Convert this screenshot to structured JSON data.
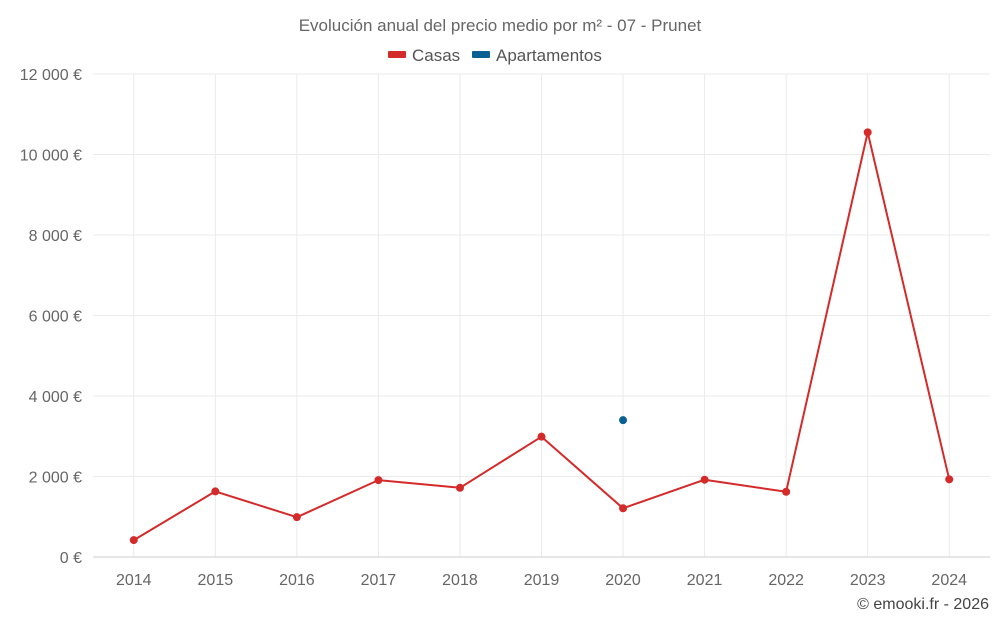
{
  "chart_data": {
    "type": "line",
    "title": "Evolución anual del precio medio por m² - 07 - Prunet",
    "categories": [
      "2014",
      "2015",
      "2016",
      "2017",
      "2018",
      "2019",
      "2020",
      "2021",
      "2022",
      "2023",
      "2024"
    ],
    "series": [
      {
        "name": "Casas",
        "color": "#d42a2a",
        "values": [
          420,
          1630,
          990,
          1910,
          1720,
          2990,
          1210,
          1920,
          1620,
          10550,
          1930
        ]
      },
      {
        "name": "Apartamentos",
        "color": "#0a5f93",
        "values": [
          null,
          null,
          null,
          null,
          null,
          null,
          3400,
          null,
          null,
          null,
          null
        ]
      }
    ],
    "ylim": [
      0,
      12000
    ],
    "yticks": [
      0,
      2000,
      4000,
      6000,
      8000,
      10000,
      12000
    ],
    "ytick_labels": [
      "0 €",
      "2 000 €",
      "4 000 €",
      "6 000 €",
      "8 000 €",
      "10 000 €",
      "12 000 €"
    ],
    "xlabel": "",
    "ylabel": "",
    "grid": true,
    "legend_position": "top-center",
    "credit": "© emooki.fr - 2026"
  }
}
